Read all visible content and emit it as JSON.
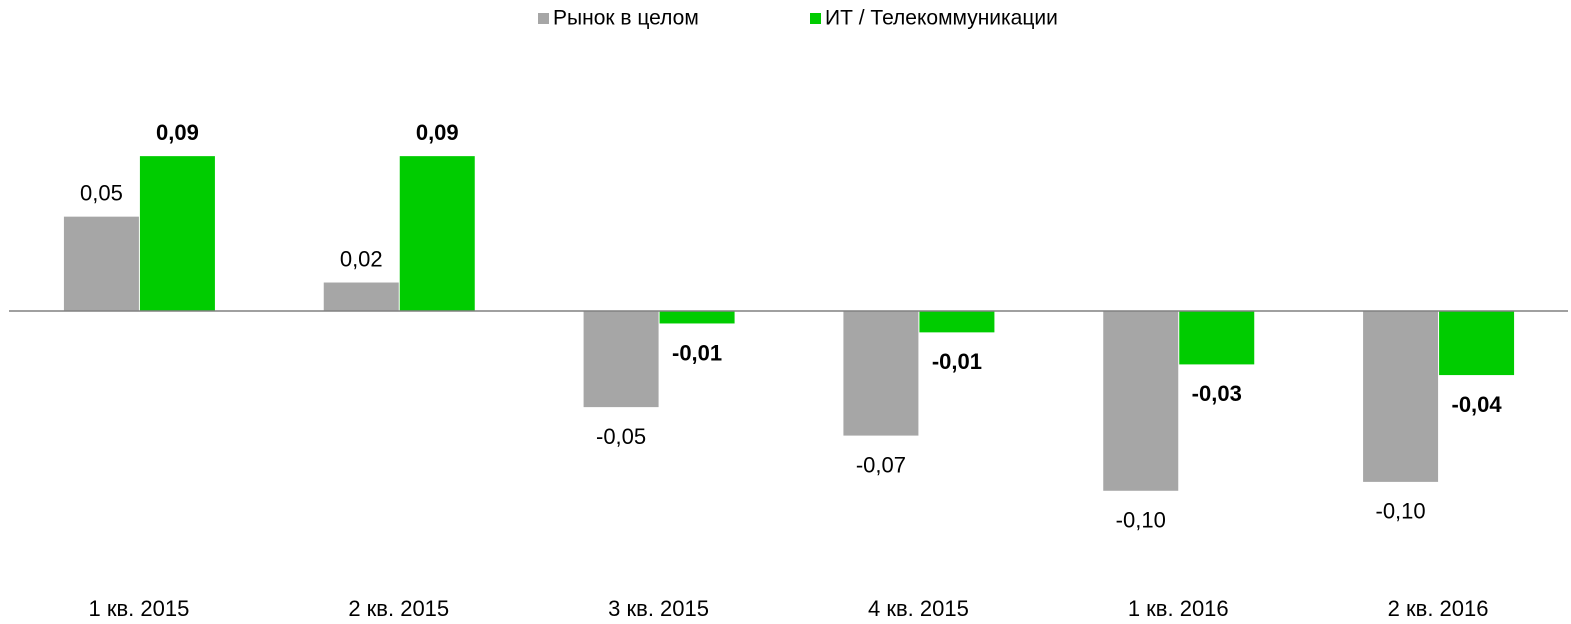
{
  "chart_data": {
    "type": "bar",
    "categories": [
      "1 кв. 2015",
      "2 кв. 2015",
      "3 кв. 2015",
      "4 кв. 2015",
      "1 кв. 2016",
      "2 кв. 2016"
    ],
    "series": [
      {
        "name": "Рынок в целом",
        "color": "#a6a6a6",
        "values": [
          0.053,
          0.016,
          -0.054,
          -0.07,
          -0.101,
          -0.096
        ],
        "value_labels": [
          "0,05",
          "0,02",
          "-0,05",
          "-0,07",
          "-0,10",
          "-0,10"
        ]
      },
      {
        "name": "ИТ / Телекоммуникации",
        "color": "#00cc00",
        "values": [
          0.087,
          0.087,
          -0.007,
          -0.012,
          -0.03,
          -0.036
        ],
        "value_labels": [
          "0,09",
          "0,09",
          "-0,01",
          "-0,01",
          "-0,03",
          "-0,04"
        ]
      }
    ],
    "ylim": [
      -0.14,
      0.13
    ]
  }
}
